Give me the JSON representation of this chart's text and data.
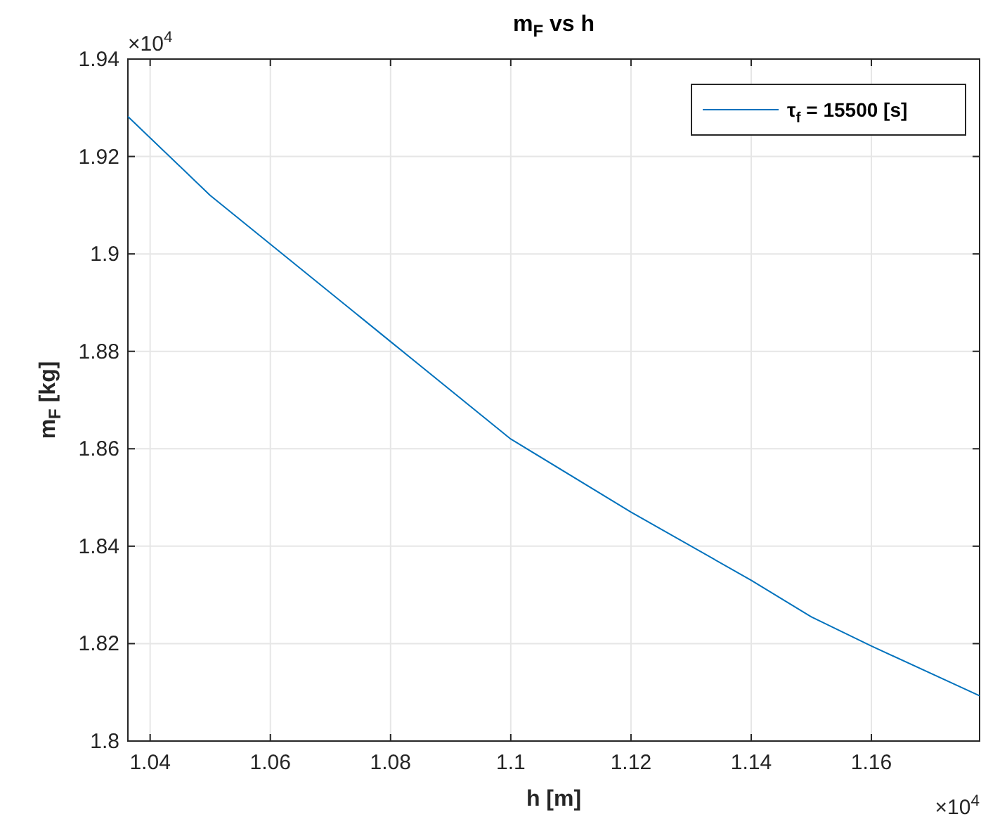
{
  "chart_data": {
    "type": "line",
    "title": "m$_{F}$ vs h",
    "xlabel": "h [m]",
    "ylabel": "m$_{F}$ [kg]",
    "annotations": [
      "×10$^{4}$",
      "×10$^{4}$"
    ],
    "x": [
      1.0363,
      1.05,
      1.08,
      1.1,
      1.12,
      1.14,
      1.15,
      1.16,
      1.178
    ],
    "series": [
      {
        "name": "τ$_{f}$ = 15500 [s]",
        "color": "#0072bd",
        "values": [
          1.9282,
          1.912,
          1.882,
          1.862,
          1.847,
          1.833,
          1.8255,
          1.8195,
          1.8093
        ]
      }
    ],
    "xlim": [
      1.0363,
      1.178
    ],
    "xticks": [
      1.04,
      1.06,
      1.08,
      1.1,
      1.12,
      1.14,
      1.16
    ],
    "ylim": [
      1.8,
      1.94
    ],
    "yticks": [
      1.8,
      1.82,
      1.84,
      1.86,
      1.88,
      1.9,
      1.92,
      1.94
    ],
    "grid": true,
    "legend": "top right",
    "line_style": "solid",
    "marker": "none"
  }
}
